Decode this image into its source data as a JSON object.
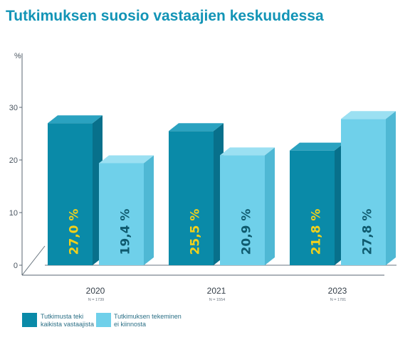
{
  "title": "Tutkimuksen suosio vastaajien keskuudessa",
  "colors": {
    "title": "#1294b6",
    "series1_front": "#0a8aa8",
    "series1_top": "#2aa2c0",
    "series1_side": "#08708b",
    "series2_front": "#6fd0ea",
    "series2_top": "#9be0f2",
    "series2_side": "#4fb8d4",
    "label_on_dark": "#f3d11a",
    "label_on_light": "#0f5a6e",
    "axis": "#5a6670"
  },
  "chart_data": {
    "type": "bar",
    "ylabel": "%",
    "yticks": [
      "0",
      "10",
      "20",
      "30"
    ],
    "ylim": [
      0,
      30
    ],
    "categories": [
      "2020",
      "2021",
      "2023"
    ],
    "n_labels": [
      "N = 1739",
      "N = 1554",
      "N = 1781"
    ],
    "series": [
      {
        "name": "Tutkimusta teki kaikista vastaajista",
        "values": [
          27.0,
          25.5,
          21.8
        ],
        "labels": [
          "27,0 %",
          "25,5 %",
          "21,8 %"
        ]
      },
      {
        "name": "Tutkimuksen tekeminen ei kiinnosta",
        "values": [
          19.4,
          20.9,
          27.8
        ],
        "labels": [
          "19,4 %",
          "20,9 %",
          "27,8 %"
        ]
      }
    ],
    "legend": [
      {
        "line1": "Tutkimusta teki",
        "line2": "kaikista vastaajista"
      },
      {
        "line1": "Tutkimuksen tekeminen",
        "line2": "ei kiinnosta"
      }
    ]
  }
}
